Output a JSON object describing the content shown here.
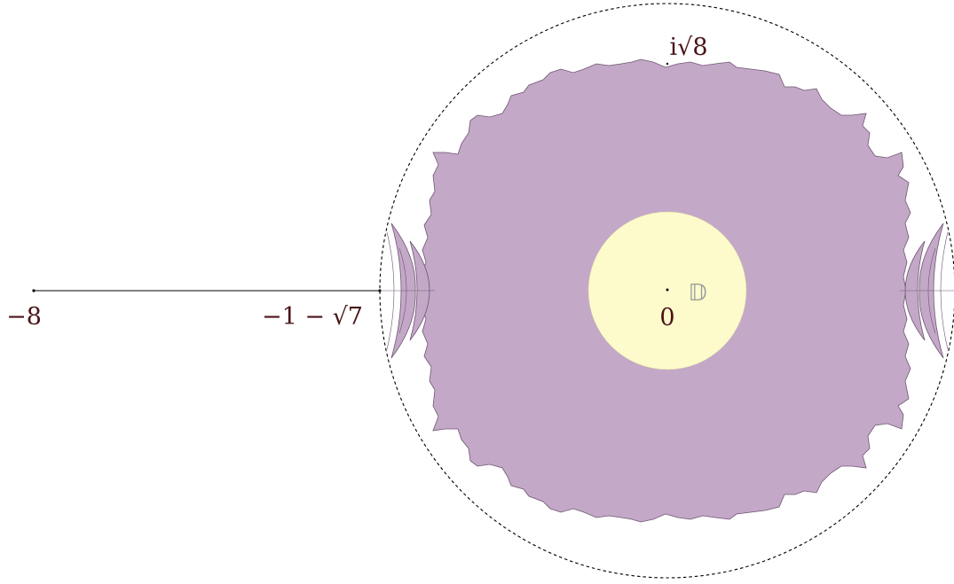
{
  "figure": {
    "labels": {
      "minus_eight": "−8",
      "minus_one_minus_sqrt7": "−1 − √7",
      "i_sqrt8": "i√8",
      "zero": "0",
      "disk": "𝔻"
    },
    "colors": {
      "region_fill": "#c4a8c8",
      "region_stroke": "#6e5670",
      "disk_fill": "#fdfbcc",
      "label_color": "#4a1418",
      "disk_label_color": "#9a9a9a",
      "boundary_circle": "#000000"
    }
  }
}
